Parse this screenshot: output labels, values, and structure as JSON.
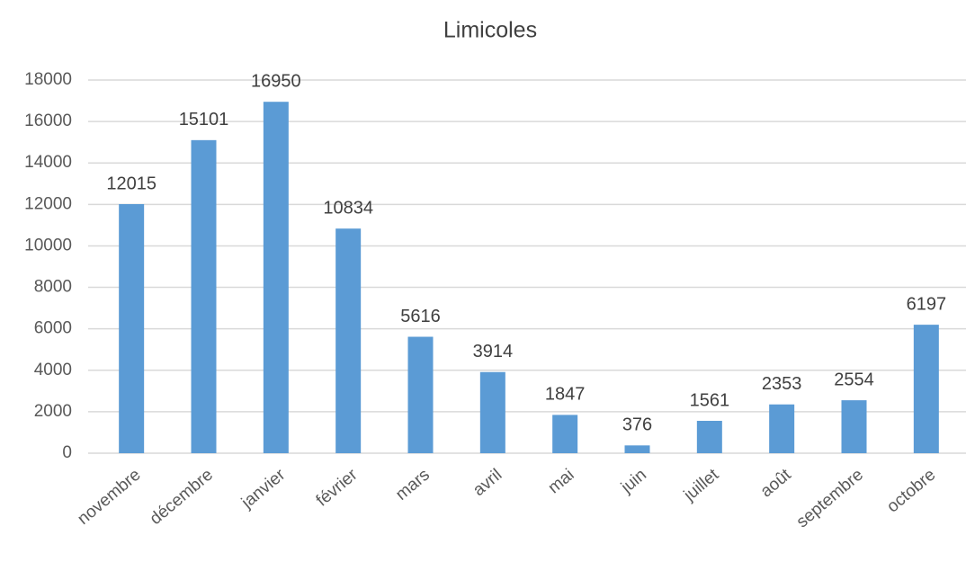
{
  "chart_data": {
    "type": "bar",
    "title": "Limicoles",
    "categories": [
      "novembre",
      "décembre",
      "janvier",
      "février",
      "mars",
      "avril",
      "mai",
      "juin",
      "juillet",
      "août",
      "septembre",
      "octobre"
    ],
    "values": [
      12015,
      15101,
      16950,
      10834,
      5616,
      3914,
      1847,
      376,
      1561,
      2353,
      2554,
      6197
    ],
    "color": "#5b9bd5",
    "ylim": [
      0,
      18000
    ],
    "yticks": [
      0,
      2000,
      4000,
      6000,
      8000,
      10000,
      12000,
      14000,
      16000,
      18000
    ],
    "grid": true
  }
}
